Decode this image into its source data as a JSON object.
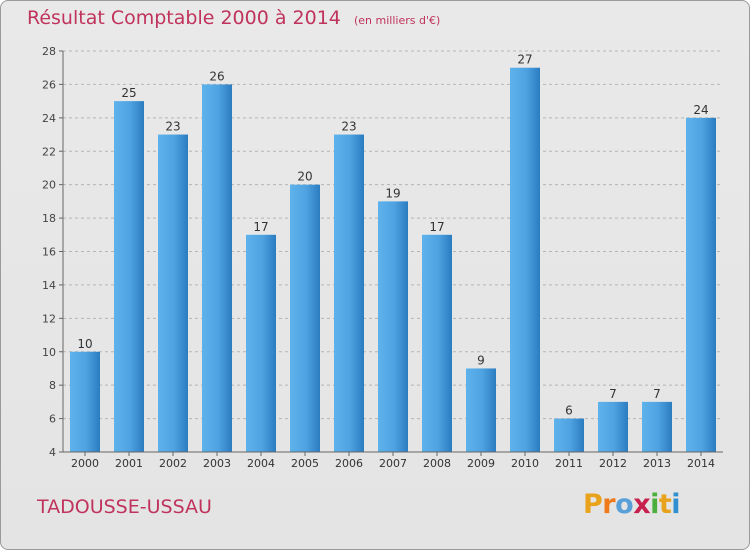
{
  "header": {
    "title": "Résultat Comptable 2000 à 2014",
    "unit": "(en milliers d'€)"
  },
  "footer": {
    "location": "TADOUSSE-USSAU",
    "brand": "Proxiti"
  },
  "colors": {
    "title": "#c0335c",
    "bar_light": "#5fb3ec",
    "bar_dark": "#2a7cc0",
    "grid": "#b5b5b5",
    "brand_letters": [
      "#e8a21c",
      "#ee7a1b",
      "#5aa0d8",
      "#c8204e",
      "#4caf3c",
      "#e8a21c",
      "#2f8fd0"
    ]
  },
  "chart_data": {
    "type": "bar",
    "categories": [
      "2000",
      "2001",
      "2002",
      "2003",
      "2004",
      "2005",
      "2006",
      "2007",
      "2008",
      "2009",
      "2010",
      "2011",
      "2012",
      "2013",
      "2014"
    ],
    "values": [
      10,
      25,
      23,
      26,
      17,
      20,
      23,
      19,
      17,
      9,
      27,
      6,
      7,
      7,
      24
    ],
    "ylim": [
      4,
      28
    ],
    "yticks": [
      4,
      6,
      8,
      10,
      12,
      14,
      16,
      18,
      20,
      22,
      24,
      26,
      28
    ],
    "grid": true,
    "legend": "none"
  }
}
